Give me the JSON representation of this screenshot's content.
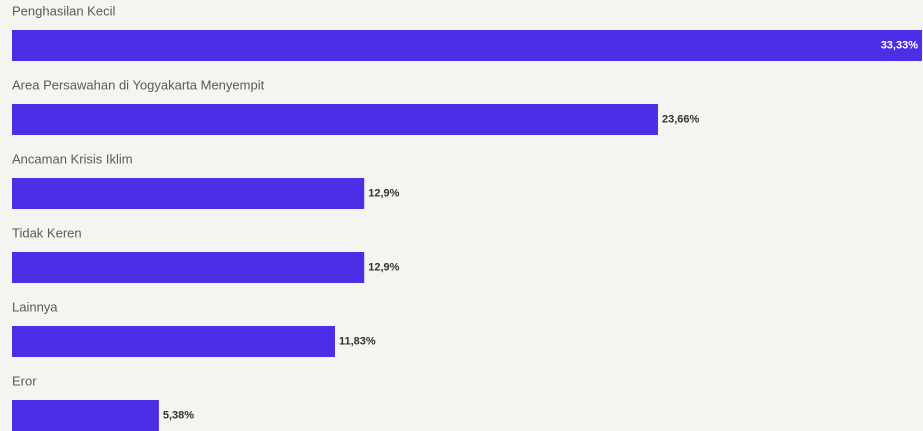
{
  "chart_data": {
    "type": "bar",
    "orientation": "horizontal",
    "categories": [
      "Penghasilan Kecil",
      "Area Persawahan di Yogyakarta Menyempit",
      "Ancaman Krisis Iklim",
      "Tidak Keren",
      "Lainnya",
      "Eror"
    ],
    "values": [
      33.33,
      23.66,
      12.9,
      12.9,
      11.83,
      5.38
    ],
    "value_labels": [
      "33,33%",
      "23,66%",
      "12,9%",
      "12,9%",
      "11,83%",
      "5,38%"
    ],
    "color": "#4b2ee6"
  }
}
